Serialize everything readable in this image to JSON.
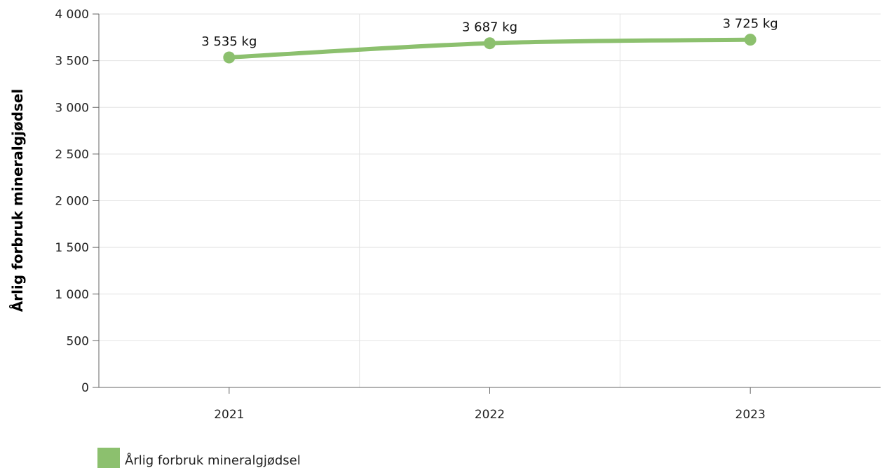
{
  "chart_data": {
    "type": "line",
    "title": "",
    "xlabel": "",
    "ylabel": "Årlig forbruk mineralgjødsel",
    "categories": [
      "2021",
      "2022",
      "2023"
    ],
    "ylim": [
      0,
      4000
    ],
    "yticks": [
      0,
      500,
      1000,
      1500,
      2000,
      2500,
      3000,
      3500,
      4000
    ],
    "ytick_labels": [
      "0",
      "500",
      "1 000",
      "1 500",
      "2 000",
      "2 500",
      "3 000",
      "3 500",
      "4 000"
    ],
    "series": [
      {
        "name": "Årlig forbruk mineralgjødsel",
        "values": [
          3535,
          3687,
          3725
        ],
        "data_labels": [
          "3 535 kg",
          "3 687 kg",
          "3 725 kg"
        ],
        "color": "#8cc06e"
      }
    ],
    "grid": true,
    "legend": "bottom-left"
  }
}
